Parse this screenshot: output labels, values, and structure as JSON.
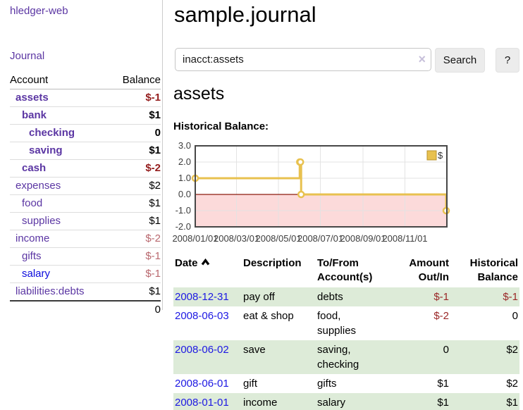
{
  "brand": "hledger-web",
  "sidebar": {
    "journal_link": "Journal",
    "accounts_header": {
      "account": "Account",
      "balance": "Balance"
    },
    "accounts": [
      {
        "name": "assets",
        "depth": 1,
        "bold": true,
        "balance": "$-1",
        "balance_tone": "negative-strong"
      },
      {
        "name": "bank",
        "depth": 2,
        "bold": true,
        "balance": "$1",
        "balance_tone": "normal"
      },
      {
        "name": "checking",
        "depth": 3,
        "bold": true,
        "balance": "0",
        "balance_tone": "normal"
      },
      {
        "name": "saving",
        "depth": 3,
        "bold": true,
        "balance": "$1",
        "balance_tone": "normal"
      },
      {
        "name": "cash",
        "depth": 2,
        "bold": true,
        "balance": "$-2",
        "balance_tone": "negative-strong"
      },
      {
        "name": "expenses",
        "depth": 1,
        "bold": false,
        "balance": "$2",
        "balance_tone": "normal"
      },
      {
        "name": "food",
        "depth": 2,
        "bold": false,
        "balance": "$1",
        "balance_tone": "normal"
      },
      {
        "name": "supplies",
        "depth": 2,
        "bold": false,
        "balance": "$1",
        "balance_tone": "normal"
      },
      {
        "name": "income",
        "depth": 1,
        "bold": false,
        "balance": "$-2",
        "balance_tone": "negative-pale"
      },
      {
        "name": "gifts",
        "depth": 2,
        "bold": false,
        "balance": "$-1",
        "balance_tone": "negative-pale"
      },
      {
        "name": "salary",
        "depth": 2,
        "bold": false,
        "balance": "$-1",
        "balance_tone": "negative-pale"
      },
      {
        "name": "liabilities:debts",
        "depth": 1,
        "bold": false,
        "balance": "$1",
        "balance_tone": "normal"
      }
    ],
    "total": "0"
  },
  "header": {
    "title": "sample.journal"
  },
  "search": {
    "value": "inacct:assets",
    "clear_icon": "×",
    "button_label": "Search",
    "help_label": "?"
  },
  "account_page": {
    "title": "assets",
    "chart_label": "Historical Balance:"
  },
  "chart_data": {
    "type": "line",
    "mode": "steps-with-points",
    "title": "Historical Balance:",
    "series": [
      {
        "name": "$",
        "points": [
          [
            "2008-01-01",
            1
          ],
          [
            "2008-06-01",
            2
          ],
          [
            "2008-06-02",
            2
          ],
          [
            "2008-06-03",
            0
          ],
          [
            "2008-12-31",
            -1
          ]
        ]
      }
    ],
    "x_range": [
      "2008-01-01",
      "2009-01-01"
    ],
    "x_ticks": [
      "2008/01/01",
      "2008/03/01",
      "2008/05/01",
      "2008/07/01",
      "2008/09/01",
      "2008/11/01"
    ],
    "y_ticks": [
      "3.0",
      "2.0",
      "1.0",
      "0.0",
      "-1.0",
      "-2.0"
    ],
    "ylim": [
      -2,
      3
    ],
    "grid": true,
    "legend_position": "top-right",
    "line_color": "#e8c14f",
    "point_fill": "#ffffff",
    "negative_region_fill": "#fcdada",
    "zero_line_color": "#8b1a0f",
    "grid_color": "#e3e3e3",
    "border_color": "#474747"
  },
  "register": {
    "headers": {
      "date": "Date",
      "description": "Description",
      "accounts": "To/From Account(s)",
      "amount": "Amount Out/In",
      "balance": "Historical Balance"
    },
    "rows": [
      {
        "date": "2008-12-31",
        "description": "pay off",
        "accounts": "debts",
        "amount": "$-1",
        "balance": "$-1"
      },
      {
        "date": "2008-06-03",
        "description": "eat & shop",
        "accounts": "food, supplies",
        "amount": "$-2",
        "balance": "0"
      },
      {
        "date": "2008-06-02",
        "description": "save",
        "accounts": "saving, checking",
        "amount": "0",
        "balance": "$2"
      },
      {
        "date": "2008-06-01",
        "description": "gift",
        "accounts": "gifts",
        "amount": "$1",
        "balance": "$2"
      },
      {
        "date": "2008-01-01",
        "description": "income",
        "accounts": "salary",
        "amount": "$1",
        "balance": "$1"
      }
    ]
  },
  "colors": {
    "link_purple": "#5b36a3",
    "link_blue": "#0b0bdd",
    "date_link_blue": "#1d18e3",
    "negative_strong": "#941d1d",
    "negative_pale": "#b9686e",
    "register_negative": "#9a2727",
    "row_stripe_green": "#ddebd8"
  }
}
